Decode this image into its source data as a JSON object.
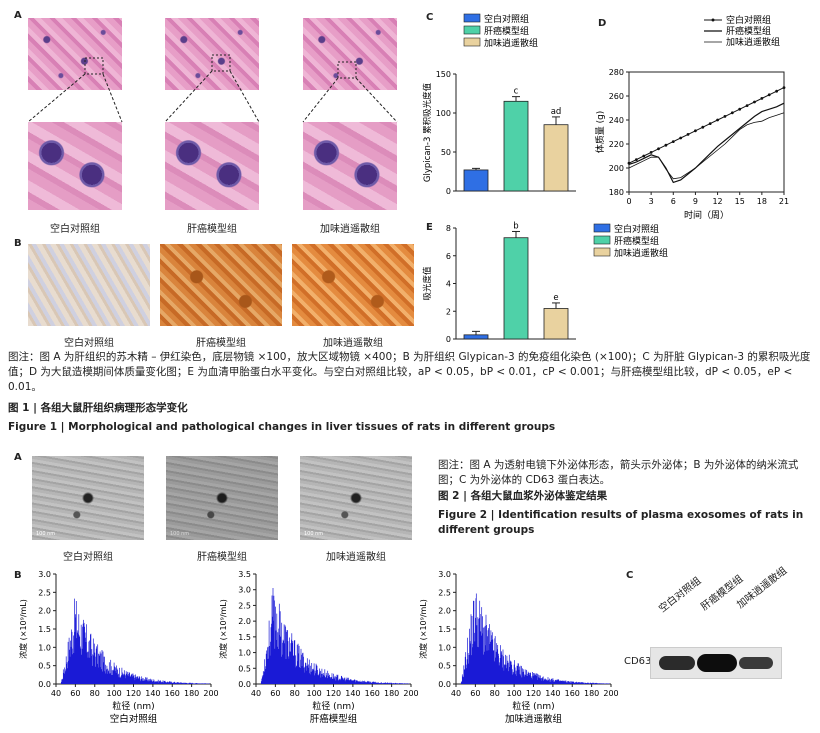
{
  "fig1": {
    "panelA": "A",
    "panelB": "B",
    "panelC": "C",
    "panelD": "D",
    "panelE": "E",
    "groups": [
      "空白对照组",
      "肝癌模型组",
      "加味逍遥散组"
    ],
    "note": "图注：图 A 为肝组织的苏木精 – 伊红染色，底层物镜 ×100，放大区域物镜 ×400；B 为肝组织 Glypican-3 的免疫组化染色 (×100)；C 为肝脏 Glypican-3 的累积吸光度值；D 为大鼠造模期间体质量变化图；E 为血清甲胎蛋白水平变化。与空白对照组比较，",
    "note_sig": "aP < 0.05，bP < 0.01，cP < 0.001；与肝癌模型组比较，dP < 0.05，eP < 0.01。",
    "title_cn": "图 1 | 各组大鼠肝组织病理形态学变化",
    "title_en": "Figure 1 | Morphological and pathological changes in liver tissues of rats in different groups"
  },
  "fig2": {
    "panelA": "A",
    "panelB": "B",
    "panelC": "C",
    "note": "图注：图 A 为透射电镜下外泌体形态，箭头示外泌体；B 为外泌体的纳米流式图；C 为外泌体的 CD63 蛋白表达。",
    "title_cn": "图 2 | 各组大鼠血浆外泌体鉴定结果",
    "title_en": "Figure 2 | Identification results of plasma exosomes of rats in different groups",
    "cd63": "CD63",
    "scale": "100 nm"
  },
  "chart_data": [
    {
      "id": "C",
      "type": "bar",
      "categories": [
        "空白对照组",
        "肝癌模型组",
        "加味逍遥散组"
      ],
      "values": [
        27,
        115,
        85
      ],
      "errors": [
        2,
        6,
        10
      ],
      "sig": [
        "",
        "c",
        "ad"
      ],
      "colors": [
        "#2f6fe4",
        "#4fd1a8",
        "#e9d29f"
      ],
      "ylabel": "Glypican-3 累积吸光度值",
      "ylim": [
        0,
        150
      ],
      "yticks": [
        0,
        50,
        100,
        150
      ],
      "legend": "top"
    },
    {
      "id": "D",
      "type": "line",
      "x": [
        0,
        1,
        2,
        3,
        4,
        5,
        6,
        7,
        8,
        9,
        10,
        11,
        12,
        13,
        14,
        15,
        16,
        17,
        18,
        19,
        20,
        21
      ],
      "series": [
        {
          "name": "空白对照组",
          "values": [
            204,
            207,
            210,
            213,
            216,
            219,
            222,
            225,
            228,
            231,
            234,
            237,
            240,
            243,
            246,
            249,
            252,
            255,
            258,
            261,
            264,
            267
          ]
        },
        {
          "name": "肝癌模型组",
          "values": [
            203,
            205,
            208,
            211,
            209,
            200,
            188,
            190,
            195,
            200,
            206,
            212,
            218,
            223,
            228,
            233,
            238,
            243,
            247,
            249,
            251,
            254
          ]
        },
        {
          "name": "加味逍遥散组",
          "values": [
            200,
            203,
            206,
            209,
            209,
            199,
            191,
            192,
            196,
            200,
            205,
            210,
            215,
            220,
            226,
            232,
            236,
            238,
            239,
            242,
            244,
            246
          ]
        }
      ],
      "xlabel": "时间（周）",
      "ylabel": "体质量 (g)",
      "xlim": [
        0,
        21
      ],
      "ylim": [
        180,
        280
      ],
      "xticks": [
        0,
        3,
        6,
        9,
        12,
        15,
        18,
        21
      ],
      "yticks": [
        180,
        200,
        220,
        240,
        260,
        280
      ],
      "legend": "top-right"
    },
    {
      "id": "E",
      "type": "bar",
      "categories": [
        "空白对照组",
        "肝癌模型组",
        "加味逍遥散组"
      ],
      "values": [
        0.3,
        7.3,
        2.2
      ],
      "errors": [
        0.25,
        0.45,
        0.4
      ],
      "sig": [
        "",
        "b",
        "e"
      ],
      "colors": [
        "#2f6fe4",
        "#4fd1a8",
        "#e9d29f"
      ],
      "ylabel": "吸光度值",
      "ylim": [
        0,
        8
      ],
      "yticks": [
        0,
        2,
        4,
        6,
        8
      ],
      "legend": "top-right"
    },
    {
      "id": "B1",
      "type": "bar",
      "title": "空白对照组",
      "xlabel": "粒径 (nm)",
      "ylabel": "浓度 (×10⁹/mL)",
      "xlim": [
        40,
        200
      ],
      "ylim": [
        0,
        3.0
      ],
      "xticks": [
        40,
        60,
        80,
        100,
        120,
        140,
        160,
        180,
        200
      ],
      "yticks": [
        0,
        0.5,
        1.0,
        1.5,
        2.0,
        2.5,
        3.0
      ],
      "peak_x": 60,
      "peak_y": 2.5
    },
    {
      "id": "B2",
      "type": "bar",
      "title": "肝癌模型组",
      "xlabel": "粒径 (nm)",
      "ylabel": "浓度 (×10⁹/mL)",
      "xlim": [
        40,
        200
      ],
      "ylim": [
        0,
        3.5
      ],
      "xticks": [
        40,
        60,
        80,
        100,
        120,
        140,
        160,
        180,
        200
      ],
      "yticks": [
        0,
        0.5,
        1.0,
        1.5,
        2.0,
        2.5,
        3.0,
        3.5
      ],
      "peak_x": 58,
      "peak_y": 3.2
    },
    {
      "id": "B3",
      "type": "bar",
      "title": "加味逍遥散组",
      "xlabel": "粒径 (nm)",
      "ylabel": "浓度 (×10⁹/mL)",
      "xlim": [
        40,
        200
      ],
      "ylim": [
        0,
        3.0
      ],
      "xticks": [
        40,
        60,
        80,
        100,
        120,
        140,
        160,
        180,
        200
      ],
      "yticks": [
        0,
        0.5,
        1.0,
        1.5,
        2.0,
        2.5,
        3.0
      ],
      "peak_x": 60,
      "peak_y": 2.8
    }
  ]
}
